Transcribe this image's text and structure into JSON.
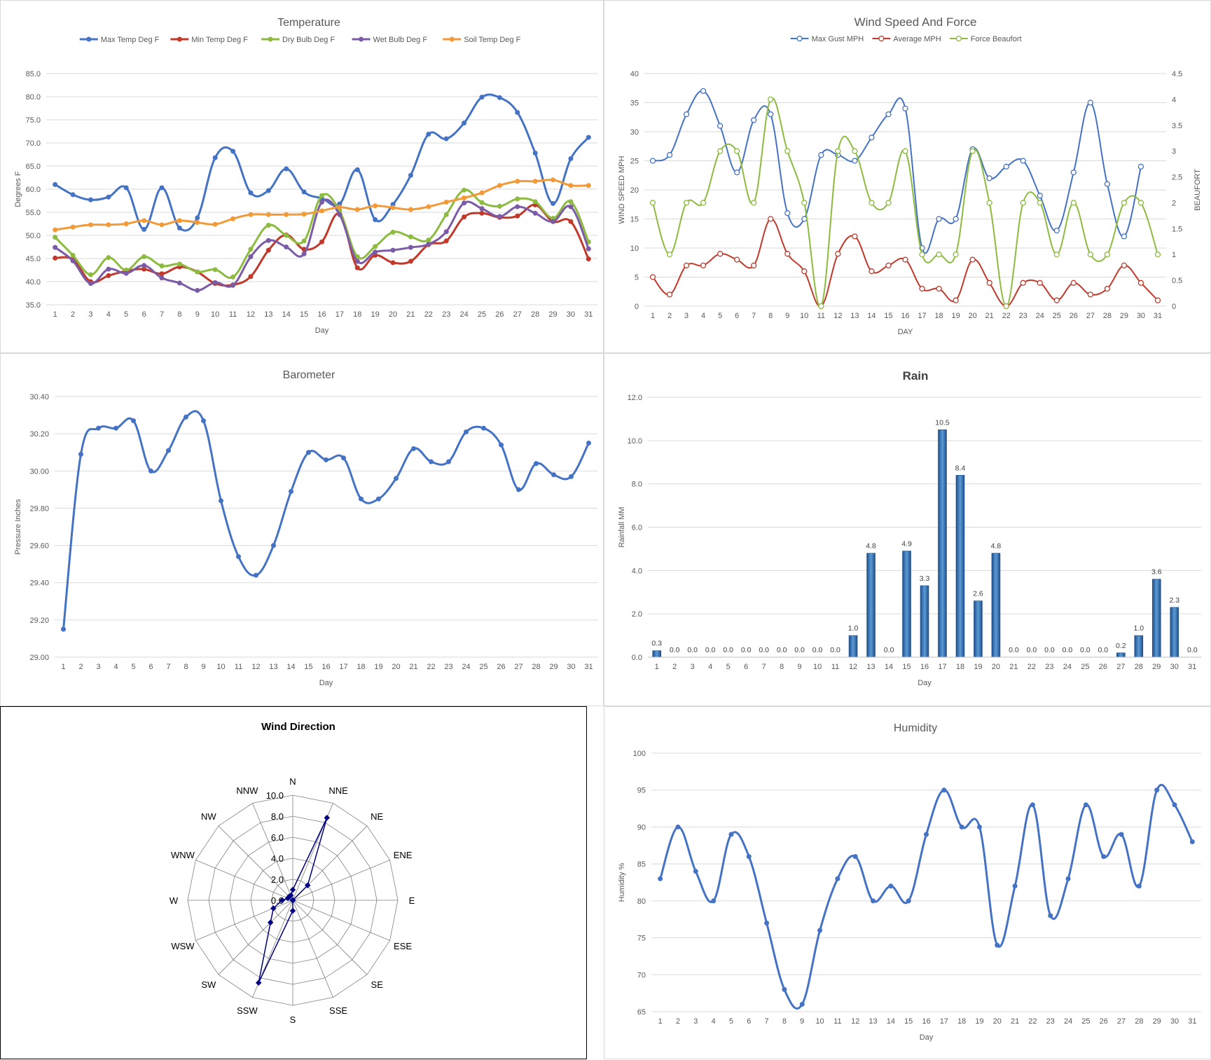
{
  "chart_data": [
    {
      "id": "temp",
      "type": "line",
      "title": "Temperature",
      "xlabel": "Day",
      "ylabel": "Degrees F",
      "ylim": [
        35,
        85
      ],
      "yticks": [
        "35.0",
        "40.0",
        "45.0",
        "50.0",
        "55.0",
        "60.0",
        "65.0",
        "70.0",
        "75.0",
        "80.0",
        "85.0"
      ],
      "x": [
        1,
        2,
        3,
        4,
        5,
        6,
        7,
        8,
        9,
        10,
        11,
        12,
        13,
        14,
        15,
        16,
        17,
        18,
        19,
        20,
        21,
        22,
        23,
        24,
        25,
        26,
        27,
        28,
        29,
        30,
        31
      ],
      "grid": true,
      "legend": "top",
      "series": [
        {
          "name": "Max Temp Deg F",
          "color": "#4472C4",
          "values": [
            61,
            58.8,
            57.7,
            58.3,
            60.3,
            51.3,
            60.3,
            51.6,
            53.8,
            66.8,
            68.2,
            59.2,
            59.7,
            64.4,
            59.4,
            58,
            56.8,
            64.2,
            53.4,
            56.7,
            63,
            71.9,
            70.9,
            74.3,
            79.9,
            79.8,
            76.6,
            67.8,
            56.9,
            66.6,
            71.2
          ]
        },
        {
          "name": "Min Temp Deg F",
          "color": "#C0392B",
          "values": [
            45.1,
            44.8,
            40,
            41.3,
            42.3,
            42.7,
            41.7,
            43.2,
            42.1,
            39.6,
            39.3,
            41.1,
            46.8,
            50.1,
            47,
            48.6,
            54.6,
            43,
            45.7,
            44.1,
            44.4,
            48,
            48.8,
            54,
            54.8,
            53.9,
            54.2,
            56.6,
            53,
            53,
            44.9
          ]
        },
        {
          "name": "Dry Bulb Deg F",
          "color": "#8CBB3F",
          "values": [
            49.6,
            45.7,
            41.5,
            45.2,
            42.5,
            45.4,
            43.4,
            43.8,
            42.1,
            42.6,
            41,
            47,
            52.2,
            50,
            48.8,
            58.6,
            55.3,
            45.4,
            47.6,
            50.7,
            49.7,
            49,
            54.5,
            59.8,
            57.1,
            56.3,
            57.9,
            57.3,
            53.7,
            57.3,
            48.6
          ]
        },
        {
          "name": "Wet Bulb Deg F",
          "color": "#7B5AA6",
          "values": [
            47.4,
            44.5,
            39.6,
            42.7,
            41.8,
            43.5,
            40.8,
            39.7,
            38.1,
            39.8,
            39.2,
            45.4,
            48.9,
            47.5,
            46,
            57.2,
            54.5,
            44.4,
            46.4,
            46.8,
            47.4,
            48.1,
            50.8,
            57,
            55.8,
            54.1,
            56.2,
            54.8,
            53,
            56.2,
            47.1
          ]
        },
        {
          "name": "Soil Temp Deg F",
          "color": "#F39A38",
          "values": [
            51.2,
            51.8,
            52.3,
            52.3,
            52.5,
            53.2,
            52.3,
            53.2,
            52.8,
            52.4,
            53.6,
            54.5,
            54.5,
            54.5,
            54.6,
            55.3,
            56.1,
            55.6,
            56.4,
            56,
            55.6,
            56.2,
            57.2,
            58.1,
            59.2,
            60.8,
            61.7,
            61.7,
            62,
            60.8,
            60.8
          ]
        }
      ]
    },
    {
      "id": "wind",
      "type": "line",
      "title": "Wind Speed And Force",
      "xlabel": "DAY",
      "ylabel": "WIND SPEED MPH",
      "y2label": "BEAUFORT",
      "ylim": [
        0,
        40
      ],
      "y2lim": [
        0,
        4.5
      ],
      "yticks": [
        "0",
        "5",
        "10",
        "15",
        "20",
        "25",
        "30",
        "35",
        "40"
      ],
      "y2ticks": [
        "0",
        "0.5",
        "1",
        "1.5",
        "2",
        "2.5",
        "3",
        "3.5",
        "4",
        "4.5"
      ],
      "x": [
        1,
        2,
        3,
        4,
        5,
        6,
        7,
        8,
        9,
        10,
        11,
        12,
        13,
        14,
        15,
        16,
        17,
        18,
        19,
        20,
        21,
        22,
        23,
        24,
        25,
        26,
        27,
        28,
        29,
        30,
        31
      ],
      "grid": true,
      "legend": "top",
      "series": [
        {
          "name": "Max Gust MPH",
          "color": "#4472C4",
          "axis": "left",
          "values": [
            25,
            26,
            33,
            37,
            31,
            23,
            32,
            33,
            16,
            15,
            26,
            26,
            25,
            29,
            33,
            34,
            10,
            15,
            15,
            27,
            22,
            24,
            25,
            19,
            13,
            23,
            35,
            21,
            12,
            24,
            null
          ]
        },
        {
          "name": "Average MPH",
          "color": "#C0392B",
          "axis": "left",
          "values": [
            5,
            2,
            7,
            7,
            9,
            8,
            7,
            15,
            9,
            6,
            0,
            9,
            12,
            6,
            7,
            8,
            3,
            3,
            1,
            8,
            4,
            0,
            4,
            4,
            1,
            4,
            2,
            3,
            7,
            4,
            1
          ]
        },
        {
          "name": "Force Beaufort",
          "color": "#8CBB3F",
          "axis": "right",
          "values": [
            2,
            1,
            2,
            2,
            3,
            3,
            2,
            4,
            3,
            2,
            0,
            3,
            3,
            2,
            2,
            3,
            1,
            1,
            1,
            3,
            2,
            0,
            2,
            2,
            1,
            2,
            1,
            1,
            2,
            2,
            1
          ]
        }
      ]
    },
    {
      "id": "baro",
      "type": "line",
      "title": "Barometer",
      "xlabel": "Day",
      "ylabel": "Pressure Inches",
      "ylim": [
        29.0,
        30.4
      ],
      "yticks": [
        "29.00",
        "29.20",
        "29.40",
        "29.60",
        "29.80",
        "30.00",
        "30.20",
        "30.40"
      ],
      "x": [
        1,
        2,
        3,
        4,
        5,
        6,
        7,
        8,
        9,
        10,
        11,
        12,
        13,
        14,
        15,
        16,
        17,
        18,
        19,
        20,
        21,
        22,
        23,
        24,
        25,
        26,
        27,
        28,
        29,
        30,
        31
      ],
      "grid": true,
      "series": [
        {
          "name": "",
          "color": "#4472C4",
          "values": [
            29.15,
            30.09,
            30.23,
            30.23,
            30.27,
            30.0,
            30.11,
            30.29,
            30.27,
            29.84,
            29.54,
            29.44,
            29.6,
            29.89,
            30.1,
            30.06,
            30.07,
            29.85,
            29.85,
            29.96,
            30.12,
            30.05,
            30.05,
            30.21,
            30.23,
            30.14,
            29.9,
            30.04,
            29.98,
            29.97,
            30.15
          ]
        }
      ]
    },
    {
      "id": "rain",
      "type": "bar",
      "title": "Rain",
      "xlabel": "Day",
      "ylabel": "Rainfall MM",
      "ylim": [
        0,
        12
      ],
      "yticks": [
        "0.0",
        "2.0",
        "4.0",
        "6.0",
        "8.0",
        "10.0",
        "12.0"
      ],
      "categories": [
        "1",
        "2",
        "3",
        "4",
        "5",
        "6",
        "7",
        "8",
        "9",
        "10",
        "11",
        "12",
        "13",
        "14",
        "15",
        "16",
        "17",
        "18",
        "19",
        "20",
        "21",
        "22",
        "23",
        "24",
        "25",
        "26",
        "27",
        "28",
        "29",
        "30",
        "31"
      ],
      "values": [
        0.3,
        0,
        0,
        0,
        0,
        0,
        0,
        0,
        0,
        0,
        0,
        1.0,
        4.8,
        0,
        4.9,
        3.3,
        10.5,
        8.4,
        2.6,
        4.8,
        0,
        0,
        0,
        0,
        0,
        0,
        0.2,
        1.0,
        3.6,
        2.3,
        0
      ],
      "labels": [
        "0.3",
        "0.0",
        "0.0",
        "0.0",
        "0.0",
        "0.0",
        "0.0",
        "0.0",
        "0.0",
        "0.0",
        "0.0",
        "1.0",
        "4.8",
        "0.0",
        "4.9",
        "3.3",
        "10.5",
        "8.4",
        "2.6",
        "4.8",
        "0.0",
        "0.0",
        "0.0",
        "0.0",
        "0.0",
        "0.0",
        "0.2",
        "1.0",
        "3.6",
        "2.3",
        "0.0"
      ],
      "grid": true,
      "color": "#2E6DB4"
    },
    {
      "id": "dir",
      "type": "radar",
      "title": "Wind Direction",
      "categories": [
        "N",
        "NNE",
        "NE",
        "ENE",
        "E",
        "ESE",
        "SE",
        "SSE",
        "S",
        "SSW",
        "SW",
        "WSW",
        "W",
        "WNW",
        "NW",
        "NNW"
      ],
      "values": [
        1.0,
        8.5,
        2.0,
        0,
        0,
        0,
        0,
        0,
        1.0,
        8.5,
        3.0,
        2.0,
        1.0,
        0.5,
        0.5,
        0.5
      ],
      "rticks": [
        "0.0",
        "2.0",
        "4.0",
        "6.0",
        "8.0",
        "10.0"
      ],
      "rlim": [
        0,
        10
      ],
      "color": "#000080"
    },
    {
      "id": "hum",
      "type": "line",
      "title": "Humidity",
      "xlabel": "Day",
      "ylabel": "Humidity %",
      "ylim": [
        65,
        100
      ],
      "yticks": [
        "65",
        "70",
        "75",
        "80",
        "85",
        "90",
        "95",
        "100"
      ],
      "x": [
        1,
        2,
        3,
        4,
        5,
        6,
        7,
        8,
        9,
        10,
        11,
        12,
        13,
        14,
        15,
        16,
        17,
        18,
        19,
        20,
        21,
        22,
        23,
        24,
        25,
        26,
        27,
        28,
        29,
        30,
        31
      ],
      "grid": true,
      "series": [
        {
          "name": "",
          "color": "#4472C4",
          "values": [
            83,
            90,
            84,
            80,
            89,
            86,
            77,
            68,
            66,
            76,
            83,
            86,
            80,
            82,
            80,
            89,
            95,
            90,
            90,
            74,
            82,
            93,
            78,
            83,
            93,
            86,
            89,
            82,
            95,
            93,
            88
          ]
        }
      ]
    }
  ]
}
